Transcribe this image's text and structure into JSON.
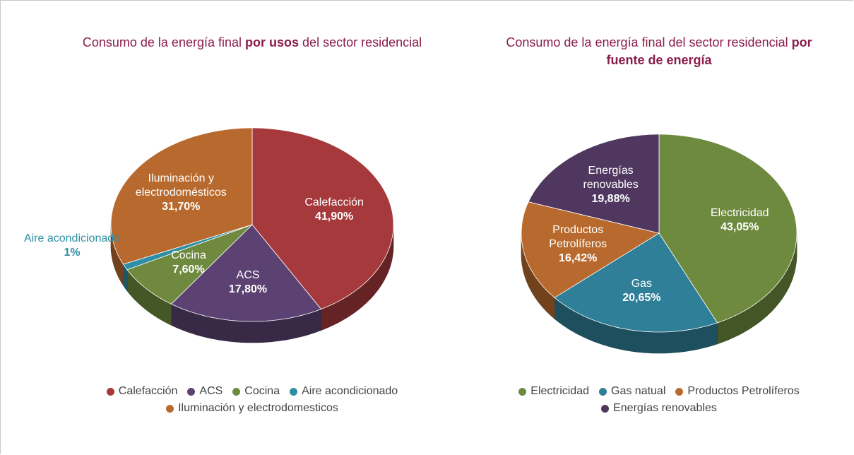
{
  "chart_data": [
    {
      "type": "pie",
      "title": [
        "Consumo de la energía final",
        "por usos",
        "del sector residencial"
      ],
      "categories": [
        "Calefacción",
        "ACS",
        "Cocina",
        "Aire acondicionado",
        "Iluminación y electrodomésticos"
      ],
      "values": [
        41.9,
        17.8,
        7.6,
        1,
        31.7
      ],
      "value_labels": [
        "41,90%",
        "17,80%",
        "7,60%",
        "1%",
        "31,70%"
      ],
      "colors": [
        "#a5393b",
        "#5b4272",
        "#6f8a3f",
        "#2e8ea5",
        "#b86a2e"
      ],
      "legend": [
        "Calefacción",
        "ACS",
        "Cocina",
        "Aire acondicionado",
        "Iluminación y electrodomesticos"
      ]
    },
    {
      "type": "pie",
      "title": [
        "Consumo de la energía final del sector residencial",
        "por fuente de energía"
      ],
      "categories": [
        "Electricidad",
        "Gas",
        "Productos Petrolíferos",
        "Energías renovables"
      ],
      "values": [
        43.05,
        20.65,
        16.42,
        19.88
      ],
      "value_labels": [
        "43,05%",
        "20,65%",
        "16,42%",
        "19,88%"
      ],
      "colors": [
        "#6d8a3e",
        "#2e7f97",
        "#b86a2e",
        "#4f3760"
      ],
      "legend": [
        "Electricidad",
        "Gas natual",
        "Productos Petrolíferos",
        "Energías renovables"
      ]
    }
  ]
}
